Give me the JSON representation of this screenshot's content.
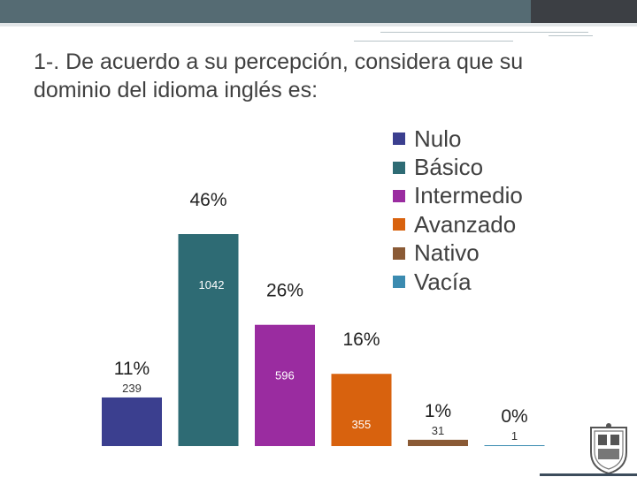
{
  "title": "1-. De acuerdo a su percepción, considera que su dominio del idioma inglés es:",
  "chart_data": {
    "type": "bar",
    "title": "1-. De acuerdo a su percepción, considera que su dominio del idioma inglés es:",
    "categories": [
      "Nulo",
      "Básico",
      "Intermedio",
      "Avanzado",
      "Nativo",
      "Vacía"
    ],
    "values": [
      239,
      1042,
      596,
      355,
      31,
      1
    ],
    "value_labels": [
      "239",
      "1042",
      "596",
      "355",
      "31",
      "1"
    ],
    "percent_labels": [
      "11%",
      "46%",
      "26%",
      "16%",
      "1%",
      "0%"
    ],
    "colors": [
      "#3b3f8f",
      "#2e6b74",
      "#9a2ca0",
      "#d8620e",
      "#8a5a35",
      "#3b8bb0"
    ],
    "xlabel": "",
    "ylabel": "",
    "ylim": [
      0,
      1042
    ],
    "legend_position": "top-right",
    "grid": false
  }
}
